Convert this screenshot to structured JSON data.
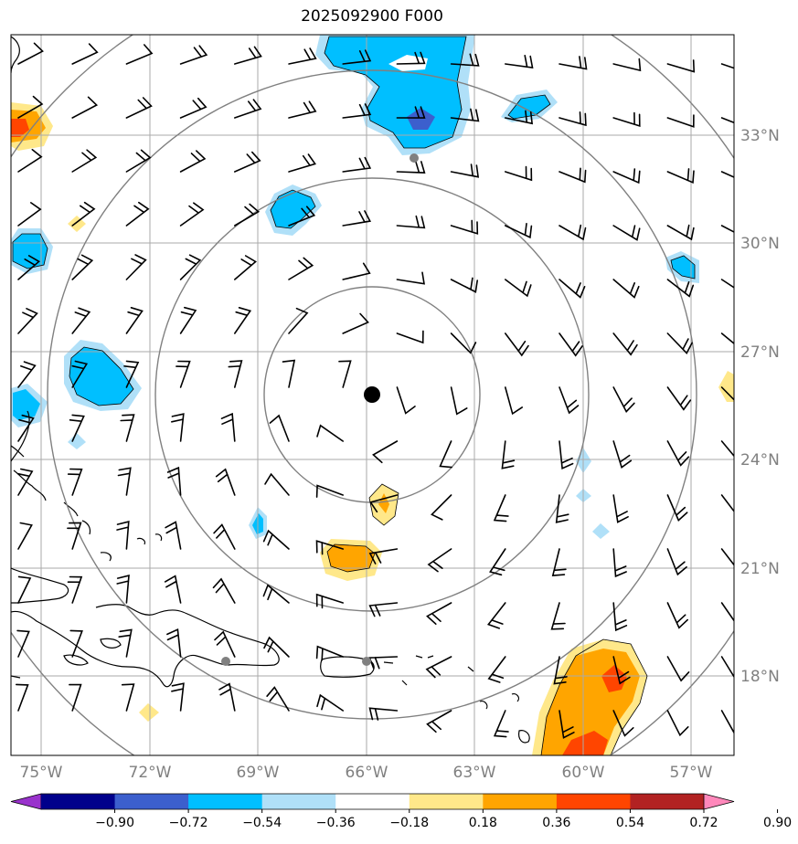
{
  "title": "2025092900 F000",
  "lon_ticks": [
    "75°W",
    "72°W",
    "69°W",
    "66°W",
    "63°W",
    "60°W",
    "57°W"
  ],
  "lat_ticks": [
    "33°N",
    "30°N",
    "27°N",
    "24°N",
    "21°N",
    "18°N"
  ],
  "colorbar": {
    "ticks": [
      "−0.90",
      "−0.72",
      "−0.54",
      "−0.36",
      "−0.18",
      "0.18",
      "0.36",
      "0.54",
      "0.72",
      "0.90"
    ],
    "colors": [
      "#9932cc",
      "#00008b",
      "#3c5fcd",
      "#00bfff",
      "#b0e0f8",
      "#ffffff",
      "#ffe88a",
      "#ffa500",
      "#ff4500",
      "#b22222",
      "#ff88bb"
    ]
  },
  "colors": {
    "lightblue": "#b0e0f8",
    "blue": "#00bfff",
    "royal": "#3c5fcd",
    "yellow": "#ffe88a",
    "orange": "#ffa500",
    "red": "#ff4500",
    "grid": "#aaaaaa",
    "ring": "#808080"
  }
}
